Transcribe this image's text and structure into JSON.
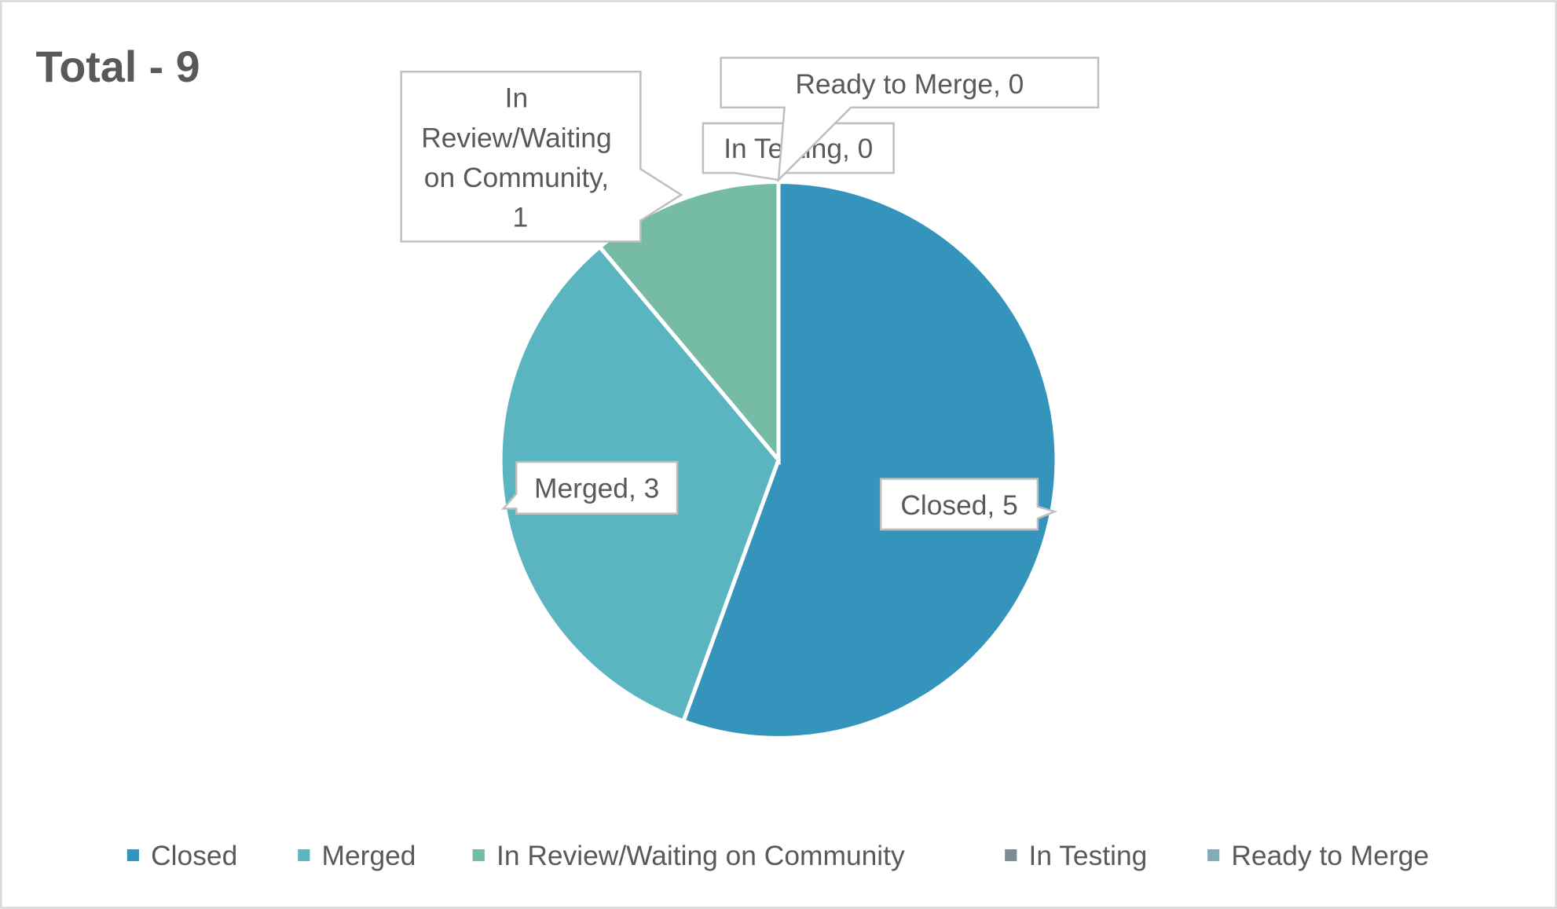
{
  "chart_data": {
    "type": "pie",
    "title": "Total - 9",
    "categories": [
      "Closed",
      "Merged",
      "In Review/Waiting on Community",
      "In Testing",
      "Ready to Merge"
    ],
    "values": [
      5,
      3,
      1,
      0,
      0
    ],
    "colors": [
      "#3594bb",
      "#5ab5c1",
      "#75bba5",
      "#7a8c8e",
      "#84acb6"
    ],
    "data_labels": [
      "Closed, 5",
      "Merged, 3",
      "In Review/Waiting on Community, 1",
      "In Testing, 0",
      "Ready to Merge, 0"
    ],
    "data_label_lines_in_review": [
      "In",
      "Review/Waiting",
      "on Community,",
      "1"
    ],
    "legend_position": "bottom"
  }
}
